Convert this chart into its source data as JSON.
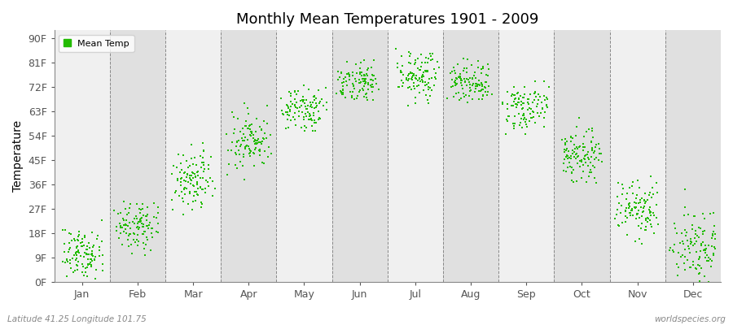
{
  "title": "Monthly Mean Temperatures 1901 - 2009",
  "ylabel": "Temperature",
  "yticks": [
    0,
    9,
    18,
    27,
    36,
    45,
    54,
    63,
    72,
    81,
    90
  ],
  "ytick_labels": [
    "0F",
    "9F",
    "18F",
    "27F",
    "36F",
    "45F",
    "54F",
    "63F",
    "72F",
    "81F",
    "90F"
  ],
  "ylim": [
    0,
    93
  ],
  "months": [
    "Jan",
    "Feb",
    "Mar",
    "Apr",
    "May",
    "Jun",
    "Jul",
    "Aug",
    "Sep",
    "Oct",
    "Nov",
    "Dec"
  ],
  "month_means_F": [
    10.5,
    19.5,
    34.0,
    49.0,
    63.0,
    73.5,
    77.5,
    74.5,
    63.0,
    47.5,
    28.0,
    14.0
  ],
  "month_spreads_F": [
    4.0,
    4.5,
    5.5,
    5.5,
    4.0,
    3.5,
    4.0,
    3.5,
    4.5,
    4.5,
    5.0,
    6.5
  ],
  "dot_color": "#22bb00",
  "bg_color_light": "#f0f0f0",
  "bg_color_dark": "#e0e0e0",
  "legend_label": "Mean Temp",
  "bottom_left_text": "Latitude 41.25 Longitude 101.75",
  "bottom_right_text": "worldspecies.org",
  "n_years": 109,
  "seed": 42,
  "dot_size": 2.5,
  "within_month_trend": [
    0.0,
    2.0,
    5.0,
    5.0,
    2.0,
    2.0,
    -2.0,
    -2.0,
    3.0,
    -2.0,
    -2.0,
    -2.0
  ]
}
